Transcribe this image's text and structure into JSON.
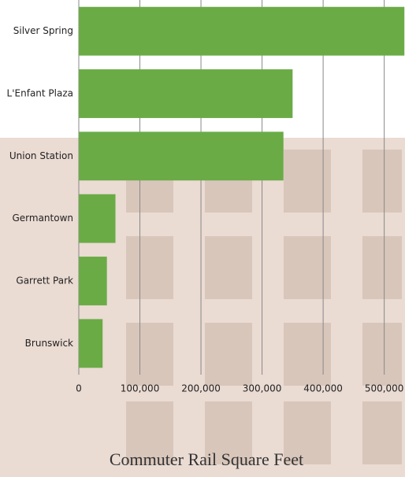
{
  "chart_data": {
    "type": "bar",
    "orientation": "horizontal",
    "title": "Commuter Rail Square Feet",
    "categories": [
      "Silver Spring",
      "L'Enfant Plaza",
      "Union Station",
      "Germantown",
      "Garrett Park",
      "Brunswick"
    ],
    "values": [
      533000,
      350000,
      335000,
      60000,
      46000,
      39000
    ],
    "color": "#6aab46",
    "xlim": [
      0,
      534000
    ],
    "xticks": [
      0,
      {
        "value": 100000,
        "label": "100,000"
      },
      {
        "value": 200000,
        "label": "200,000"
      },
      {
        "value": 300000,
        "label": "300,000"
      },
      {
        "value": 400000,
        "label": "400,000"
      },
      {
        "value": 500000,
        "label": "500,000"
      }
    ],
    "grid": true
  }
}
